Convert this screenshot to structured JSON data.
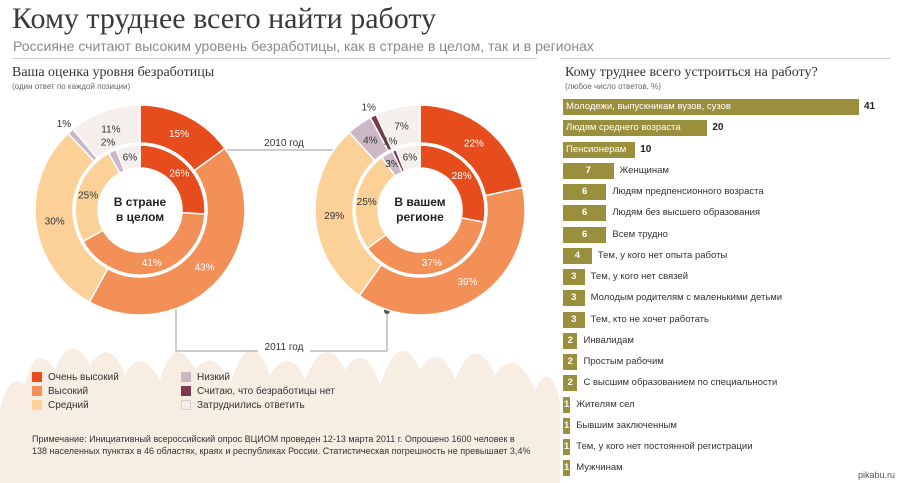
{
  "header": {
    "title": "Кому труднее всего найти работу",
    "subtitle": "Россияне считают высоким уровень безработицы, как в стране в целом, так и в регионах"
  },
  "left": {
    "title": "Ваша оценка уровня безработицы",
    "subtitle": "(один ответ по каждой позиции)"
  },
  "right": {
    "title": "Кому труднее всего устроиться на работу?",
    "subtitle": "(любое число ответов, %)"
  },
  "year_labels": {
    "outer": "2010 год",
    "inner": "2011 год"
  },
  "legend": [
    {
      "label": "Очень высокий",
      "color": "#e64c1c"
    },
    {
      "label": "Высокий",
      "color": "#f39058"
    },
    {
      "label": "Средний",
      "color": "#fcd198"
    },
    {
      "label": "Низкий",
      "color": "#ccb8c5"
    },
    {
      "label": "Считаю, что безработицы нет",
      "color": "#7b3a4e"
    },
    {
      "label": "Затруднились ответить",
      "color": "#f4efed"
    }
  ],
  "note": "Примечание: Инициативный всероссийский опрос ВЦИОМ проведен 12-13 марта 2011 г. Опрошено 1600 человек в 138 населенных пунктах в 46 областях, краях и республиках России. Статистическая погрешность не превышает 3,4%",
  "watermark": "pikabu.ru",
  "chart_data": [
    {
      "type": "pie",
      "title": "В стране в целом",
      "categories": [
        "Очень высокий",
        "Высокий",
        "Средний",
        "Низкий",
        "Считаю, что безработицы нет",
        "Затруднились ответить"
      ],
      "series": [
        {
          "name": "2010 год",
          "values": [
            15,
            43,
            30,
            1,
            0,
            11
          ],
          "labels": [
            "15%",
            "43%",
            "30%",
            "1%",
            "",
            "11%"
          ]
        },
        {
          "name": "2011 год",
          "values": [
            26,
            41,
            25,
            2,
            0,
            6
          ],
          "labels": [
            "26%",
            "41%",
            "25%",
            "2%",
            "",
            "6%"
          ]
        }
      ]
    },
    {
      "type": "pie",
      "title": "В вашем регионе",
      "categories": [
        "Очень высокий",
        "Высокий",
        "Средний",
        "Низкий",
        "Считаю, что безработицы нет",
        "Затруднились ответить"
      ],
      "series": [
        {
          "name": "2010 год",
          "values": [
            22,
            39,
            29,
            4,
            1,
            7
          ],
          "labels": [
            "22%",
            "39%",
            "29%",
            "4%",
            "1%",
            "7%"
          ]
        },
        {
          "name": "2011 год",
          "values": [
            28,
            37,
            25,
            3,
            1,
            6
          ],
          "labels": [
            "28%",
            "37%",
            "25%",
            "3%",
            "1%",
            "6%"
          ]
        }
      ]
    },
    {
      "type": "bar",
      "title": "Кому труднее всего устроиться на работу?",
      "categories": [
        "Молодежи, выпускникам вузов, сузов",
        "Людям среднего возраста",
        "Пенсионерам",
        "Женщинам",
        "Людям предпенсионного возраста",
        "Людям без высшего образования",
        "Всем трудно",
        "Тем, у кого нет опыта работы",
        "Тем, у кого нет связей",
        "Молодым родителям с маленькими детьми",
        "Тем, кто не хочет работать",
        "Инвалидам",
        "Простым рабочим",
        "С высшим образованием по специальности",
        "Жителям сел",
        "Бывшим заключенным",
        "Тем, у кого нет постоянной регистрации",
        "Мужчинам"
      ],
      "values": [
        41,
        20,
        10,
        7,
        6,
        6,
        6,
        4,
        3,
        3,
        3,
        2,
        2,
        2,
        1,
        1,
        1,
        1
      ],
      "xlim": [
        0,
        41
      ],
      "xlabel": "",
      "ylabel": ""
    }
  ]
}
